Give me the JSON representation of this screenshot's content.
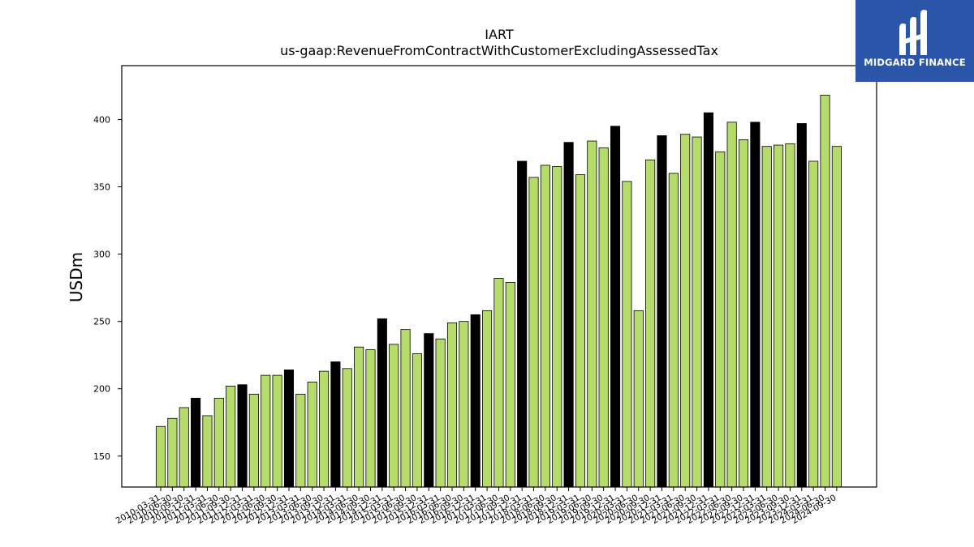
{
  "chart_data": {
    "type": "bar",
    "title": "IART",
    "subtitle": "us-gaap:RevenueFromContractWithCustomerExcludingAssessedTax",
    "xlabel": "",
    "ylabel": "USDm",
    "ylim": [
      127,
      440
    ],
    "yticks": [
      150,
      200,
      250,
      300,
      350,
      400
    ],
    "grid": false,
    "colors": {
      "quarter": "#b5dc6b",
      "year_end": "#000000",
      "edge": "#000000"
    },
    "categories": [
      "2010-03-31",
      "2010-06-30",
      "2010-09-30",
      "2010-12-31",
      "2011-03-31",
      "2011-06-30",
      "2011-09-30",
      "2011-12-31",
      "2012-03-31",
      "2012-06-30",
      "2012-09-30",
      "2012-12-31",
      "2013-03-31",
      "2013-06-30",
      "2013-09-30",
      "2013-12-31",
      "2014-03-31",
      "2014-06-30",
      "2014-09-30",
      "2014-12-31",
      "2015-03-31",
      "2015-06-30",
      "2015-09-30",
      "2015-12-31",
      "2016-03-31",
      "2016-06-30",
      "2016-09-30",
      "2016-12-31",
      "2017-03-31",
      "2017-06-30",
      "2017-09-30",
      "2017-12-31",
      "2018-03-31",
      "2018-06-30",
      "2018-09-30",
      "2018-12-31",
      "2019-03-31",
      "2019-06-30",
      "2019-09-30",
      "2019-12-31",
      "2020-03-31",
      "2020-06-30",
      "2020-09-30",
      "2020-12-31",
      "2021-03-31",
      "2021-06-30",
      "2021-09-30",
      "2021-12-31",
      "2022-03-31",
      "2022-06-30",
      "2022-09-30",
      "2022-12-31",
      "2023-03-31",
      "2023-06-30",
      "2023-09-30",
      "2023-12-31",
      "2024-03-31",
      "2024-06-30",
      "2024-09-30"
    ],
    "values": [
      172,
      178,
      186,
      193,
      180,
      193,
      202,
      203,
      196,
      210,
      210,
      214,
      196,
      205,
      213,
      220,
      215,
      231,
      229,
      252,
      233,
      244,
      226,
      241,
      237,
      249,
      250,
      255,
      258,
      282,
      279,
      369,
      357,
      366,
      365,
      383,
      359,
      384,
      379,
      395,
      354,
      258,
      370,
      388,
      360,
      389,
      387,
      405,
      376,
      398,
      385,
      398,
      380,
      381,
      382,
      397,
      369,
      418,
      380
    ],
    "year_end": [
      false,
      false,
      false,
      true,
      false,
      false,
      false,
      true,
      false,
      false,
      false,
      true,
      false,
      false,
      false,
      true,
      false,
      false,
      false,
      true,
      false,
      false,
      false,
      true,
      false,
      false,
      false,
      true,
      false,
      false,
      false,
      true,
      false,
      false,
      false,
      true,
      false,
      false,
      false,
      true,
      false,
      false,
      false,
      true,
      false,
      false,
      false,
      true,
      false,
      false,
      false,
      true,
      false,
      false,
      false,
      true,
      false,
      false,
      false
    ]
  },
  "logo": {
    "text": "MIDGARD FINANCE",
    "icon": "midgard-logo-icon"
  }
}
